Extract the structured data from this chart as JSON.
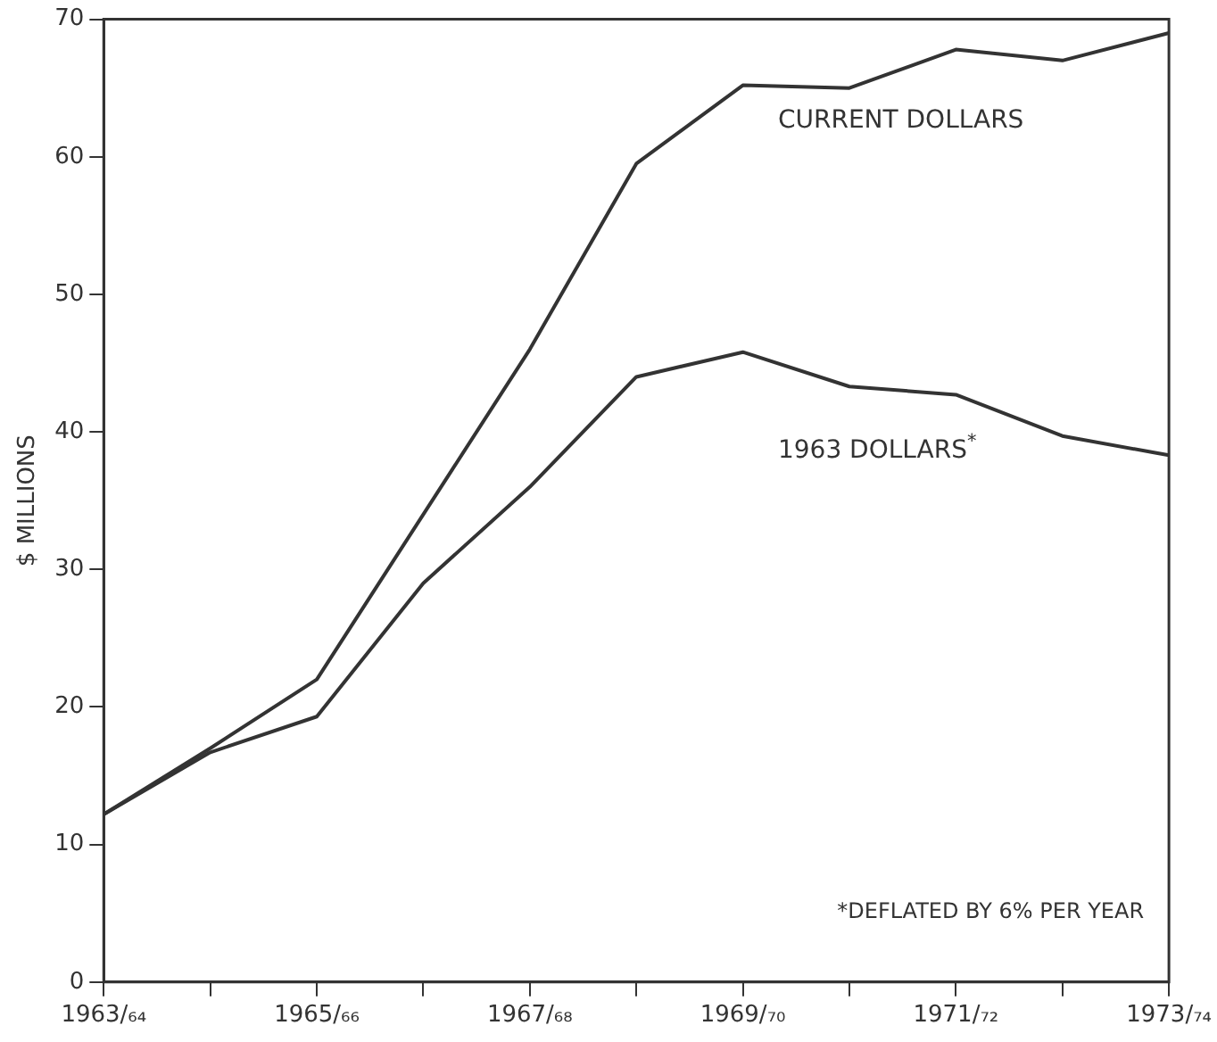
{
  "chart_data": {
    "type": "line",
    "ylabel": "$ MILLIONS",
    "categories": [
      "1963/₆₄",
      null,
      "1965/₆₆",
      null,
      "1967/₆₈",
      null,
      "1969/₇₀",
      null,
      "1971/₇₂",
      null,
      "1973/₇₄"
    ],
    "series": [
      {
        "name": "CURRENT DOLLARS",
        "color": "#333333",
        "values": [
          12.2,
          17,
          22,
          34,
          46,
          59.5,
          65.2,
          65,
          67.8,
          67,
          69
        ]
      },
      {
        "name": "1963 DOLLARS$^{*}$",
        "color": "#333333",
        "values": [
          12.2,
          16.7,
          19.3,
          29,
          36,
          44,
          45.8,
          43.3,
          42.7,
          39.7,
          38.3
        ]
      }
    ],
    "ylim": [
      0,
      70
    ],
    "yticks": [
      0,
      10,
      20,
      30,
      40,
      50,
      60,
      70
    ],
    "grid": false,
    "legend": false,
    "marker": "none",
    "line_style": "solid",
    "annotations": [
      "*DEFLATED BY 6% PER YEAR"
    ]
  }
}
